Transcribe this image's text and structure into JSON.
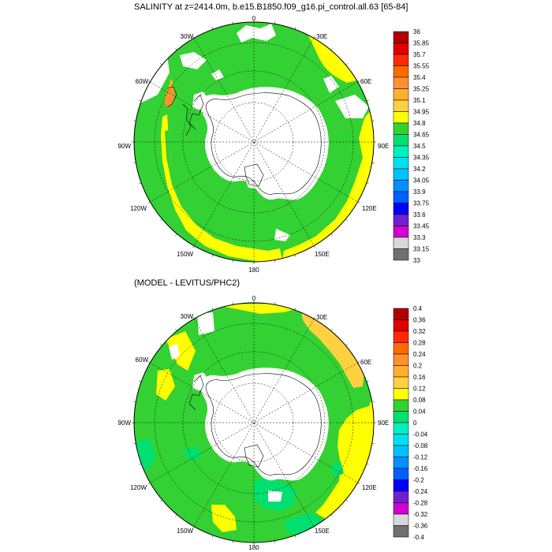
{
  "panels": [
    {
      "title": "SALINITY at z=2414.0m, b.e15.B1850.f09_g16.pi_control.all.63 [65-84]",
      "colorbar": {
        "labels": [
          "36",
          "35.85",
          "35.7",
          "35.55",
          "35.4",
          "35.25",
          "35.1",
          "34.95",
          "34.8",
          "34.65",
          "34.5",
          "34.35",
          "34.2",
          "34.05",
          "33.9",
          "33.75",
          "33.6",
          "33.45",
          "33.3",
          "33.15",
          "33"
        ],
        "colors": [
          "#b00000",
          "#e00000",
          "#ff2a00",
          "#ff6a00",
          "#ff9030",
          "#ffb030",
          "#ffd040",
          "#ffff00",
          "#33d133",
          "#00e070",
          "#00f0c0",
          "#00e0f0",
          "#00c0ff",
          "#0090ff",
          "#0060ff",
          "#0000ff",
          "#7020d0",
          "#d000d0",
          "#d8d8d8",
          "#707070"
        ]
      },
      "lon_labels": [
        "0",
        "30E",
        "60E",
        "90E",
        "120E",
        "150E",
        "180",
        "150W",
        "120W",
        "90W",
        "60W",
        "30W"
      ]
    },
    {
      "title": "(MODEL - LEVITUS/PHC2)",
      "colorbar": {
        "labels": [
          "0.4",
          "0.36",
          "0.32",
          "0.28",
          "0.24",
          "0.2",
          "0.16",
          "0.12",
          "0.08",
          "0.04",
          "0",
          "-0.04",
          "-0.08",
          "-0.12",
          "-0.16",
          "-0.2",
          "-0.24",
          "-0.28",
          "-0.32",
          "-0.36",
          "-0.4"
        ],
        "colors": [
          "#b00000",
          "#e00000",
          "#ff2a00",
          "#ff6a00",
          "#ff9030",
          "#ffb030",
          "#ffd040",
          "#ffff00",
          "#33d133",
          "#00e070",
          "#00f0c0",
          "#00e0f0",
          "#00c0ff",
          "#0090ff",
          "#0060ff",
          "#0000ff",
          "#7020d0",
          "#d000d0",
          "#d8d8d8",
          "#707070"
        ]
      },
      "lon_labels": [
        "0",
        "30E",
        "60E",
        "90E",
        "120E",
        "150E",
        "180",
        "150W",
        "120W",
        "90W",
        "60W",
        "30W"
      ]
    }
  ],
  "colors": {
    "salinity_main": "#33d133",
    "salinity_high": "#ffff00",
    "anom_pos": "#33d133",
    "anom_high": "#ffff00",
    "anom_max": "#ffd040",
    "anom_neg": "#00e070",
    "land": "#ffffff"
  }
}
